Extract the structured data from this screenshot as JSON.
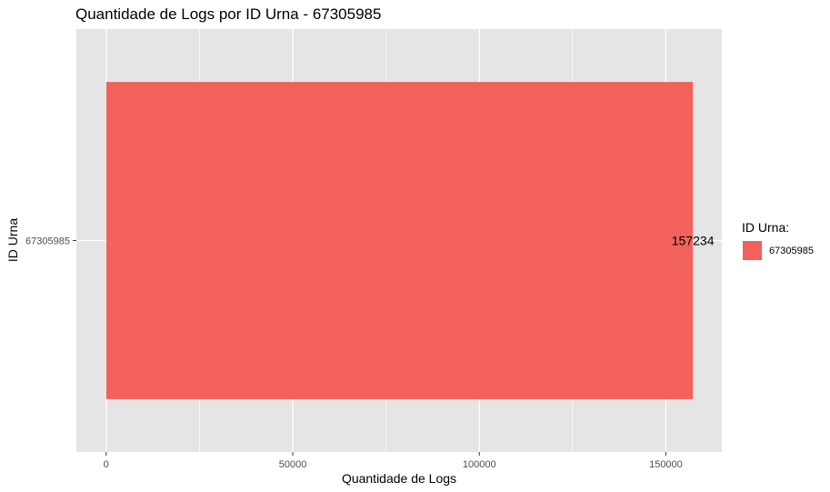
{
  "chart_data": {
    "type": "bar",
    "orientation": "horizontal",
    "title": "Quantidade de Logs por ID Urna - 67305985",
    "xlabel": "Quantidade de Logs",
    "ylabel": "ID Urna",
    "categories": [
      "67305985"
    ],
    "values": [
      157234
    ],
    "data_labels": [
      "157234"
    ],
    "xlim": [
      -8000,
      165000
    ],
    "x_ticks": [
      0,
      50000,
      100000,
      150000
    ],
    "x_tick_labels": [
      "0",
      "50000",
      "100000",
      "150000"
    ],
    "grid": true,
    "legend": {
      "title": "ID Urna:",
      "position": "right",
      "entries": [
        "67305985"
      ]
    },
    "colors": {
      "bar": "#f3615d",
      "panel_bg": "#e5e5e5",
      "grid": "#ffffff"
    }
  }
}
